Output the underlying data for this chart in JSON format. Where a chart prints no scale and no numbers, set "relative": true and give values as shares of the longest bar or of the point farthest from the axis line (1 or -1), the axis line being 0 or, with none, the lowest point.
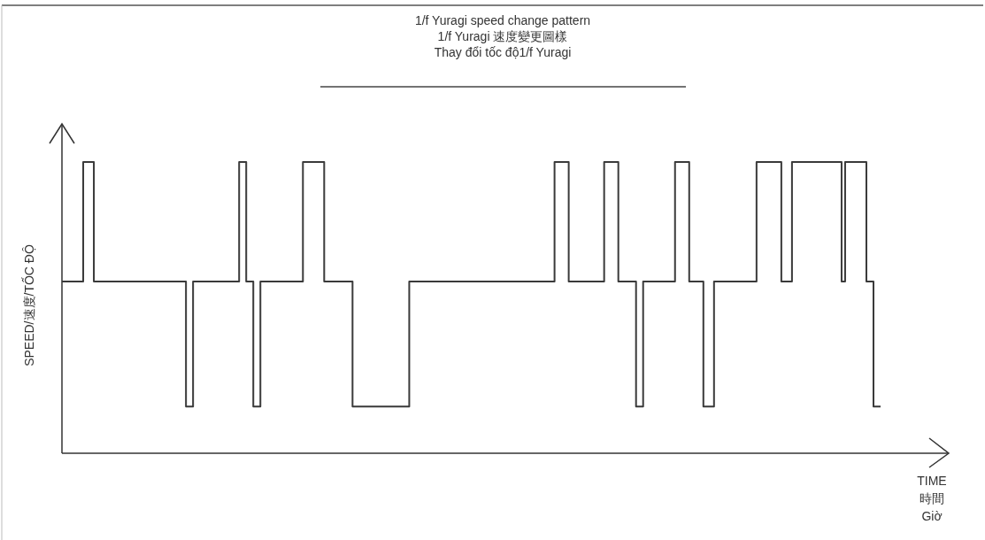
{
  "chart_data": {
    "type": "step",
    "title": "1/f Yuragi speed change pattern\n1/f Yuragi 速度變更圖樣\nThay đổi tốc độ1/f Yuragi",
    "xlabel": "TIME\n時間\nGiờ",
    "ylabel": "SPEED/速度/TỐC ĐỘ",
    "relative": true,
    "color": "#3a3a3a",
    "categories": [
      null,
      null,
      null,
      null,
      null,
      null,
      null,
      null,
      null,
      null,
      null,
      null,
      null,
      null,
      null,
      null,
      null,
      null,
      null,
      null,
      null,
      null,
      null,
      null,
      null,
      null,
      null,
      null,
      null,
      null,
      null,
      null,
      null,
      null,
      null,
      null,
      null,
      null,
      null,
      null,
      null,
      null,
      null,
      null,
      null,
      null,
      null,
      null,
      null,
      null,
      null,
      null,
      null,
      null,
      null,
      null,
      null,
      null,
      null,
      null,
      null,
      null,
      null,
      null,
      null,
      null,
      null,
      null,
      null,
      null,
      null,
      null,
      null,
      null,
      null,
      null,
      null,
      null,
      null,
      null,
      null,
      null,
      null,
      null,
      null,
      null,
      null,
      null,
      null,
      null,
      null,
      null,
      null,
      null,
      null,
      null,
      null,
      null,
      null,
      null,
      null,
      null,
      null,
      null,
      null,
      null,
      null,
      null,
      null,
      null,
      null,
      null,
      null,
      null,
      null,
      null,
      null,
      null,
      null,
      null,
      null,
      null,
      null,
      null,
      null,
      null,
      null,
      null,
      null,
      null,
      null,
      null,
      null,
      null,
      null,
      null,
      null,
      null,
      null,
      null,
      null,
      null,
      null,
      null,
      null,
      null,
      null,
      null,
      null,
      null,
      null,
      null,
      null,
      null,
      null,
      null,
      null,
      null,
      null,
      null,
      null,
      null,
      null,
      null,
      null,
      null,
      null,
      null,
      null,
      null,
      null,
      null,
      null,
      null,
      null,
      null,
      null,
      null,
      null,
      null,
      null,
      null,
      null,
      null,
      null,
      null,
      null,
      null,
      null,
      null,
      null,
      null,
      null,
      null,
      null,
      null,
      null,
      null,
      null,
      null,
      null,
      null,
      null,
      null,
      null,
      null,
      null,
      null,
      null,
      null,
      null,
      null,
      null,
      null,
      null,
      null,
      null,
      null,
      null,
      null,
      null,
      null,
      null,
      null,
      null,
      null,
      null,
      null,
      null,
      null,
      null,
      null
    ],
    "values": [
      0.59,
      0.59,
      0.59,
      0.59,
      0.59,
      0.59,
      1,
      1,
      1,
      0.59,
      0.59,
      0.59,
      0.59,
      0.59,
      0.59,
      0.59,
      0.59,
      0.59,
      0.59,
      0.59,
      0.59,
      0.59,
      0.59,
      0.59,
      0.59,
      0.59,
      0.59,
      0.59,
      0.59,
      0.59,
      0.59,
      0.59,
      0.59,
      0.59,
      0.59,
      0.16,
      0.16,
      0.59,
      0.59,
      0.59,
      0.59,
      0.59,
      0.59,
      0.59,
      0.59,
      0.59,
      0.59,
      0.59,
      0.59,
      0.59,
      1,
      1,
      0.59,
      0.59,
      0.16,
      0.16,
      0.59,
      0.59,
      0.59,
      0.59,
      0.59,
      0.59,
      0.59,
      0.59,
      0.59,
      0.59,
      0.59,
      0.59,
      1,
      1,
      1,
      1,
      1,
      1,
      0.59,
      0.59,
      0.59,
      0.59,
      0.59,
      0.59,
      0.59,
      0.59,
      0.16,
      0.16,
      0.16,
      0.16,
      0.16,
      0.16,
      0.16,
      0.16,
      0.16,
      0.16,
      0.16,
      0.16,
      0.16,
      0.16,
      0.16,
      0.16,
      0.59,
      0.59,
      0.59,
      0.59,
      0.59,
      0.59,
      0.59,
      0.59,
      0.59,
      0.59,
      0.59,
      0.59,
      0.59,
      0.59,
      0.59,
      0.59,
      0.59,
      0.59,
      0.59,
      0.59,
      0.59,
      0.59,
      0.59,
      0.59,
      0.59,
      0.59,
      0.59,
      0.59,
      0.59,
      0.59,
      0.59,
      0.59,
      0.59,
      0.59,
      0.59,
      0.59,
      0.59,
      0.59,
      0.59,
      0.59,
      0.59,
      1,
      1,
      1,
      1,
      0.59,
      0.59,
      0.59,
      0.59,
      0.59,
      0.59,
      0.59,
      0.59,
      0.59,
      0.59,
      1,
      1,
      1,
      1,
      0.59,
      0.59,
      0.59,
      0.59,
      0.59,
      0.16,
      0.16,
      0.59,
      0.59,
      0.59,
      0.59,
      0.59,
      0.59,
      0.59,
      0.59,
      0.59,
      1,
      1,
      1,
      1,
      0.59,
      0.59,
      0.59,
      0.59,
      0.16,
      0.16,
      0.16,
      0.59,
      0.59,
      0.59,
      0.59,
      0.59,
      0.59,
      0.59,
      0.59,
      0.59,
      0.59,
      0.59,
      0.59,
      1,
      1,
      1,
      1,
      1,
      1,
      1,
      0.59,
      0.59,
      0.59,
      1,
      1,
      1,
      1,
      1,
      1,
      1,
      1,
      1,
      1,
      1,
      1,
      1,
      1,
      0.59,
      1,
      1,
      1,
      1,
      1,
      1,
      0.59,
      0.59,
      0.16,
      0.16,
      0.16
    ]
  }
}
